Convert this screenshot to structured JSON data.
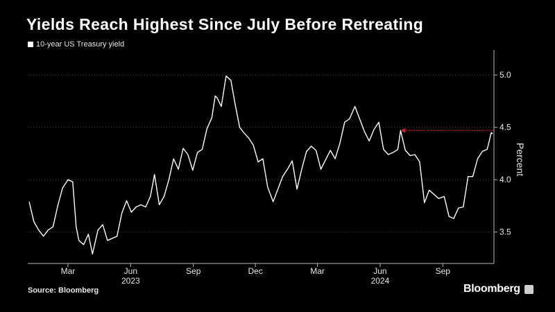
{
  "title": "Yields Reach Highest Since July Before Retreating",
  "legend_label": "10-year US Treasury yield",
  "source": "Source: Bloomberg",
  "brand": "Bloomberg",
  "colors": {
    "background": "#000000",
    "line": "#ffffff",
    "arrow": "#d2202f"
  },
  "chart_data": {
    "type": "line",
    "title": "Yields Reach Highest Since July Before Retreating",
    "ylabel": "Percent",
    "ylim": [
      3.2,
      5.2
    ],
    "yticks": [
      3.5,
      4.0,
      4.5,
      5.0
    ],
    "y_tick_labels": [
      "3.5",
      "4.0",
      "4.5",
      "5.0"
    ],
    "xlim": [
      "2023-01-01",
      "2024-11-15"
    ],
    "x_ticks": [
      {
        "date": "2023-03-01",
        "label": "Mar"
      },
      {
        "date": "2023-06-01",
        "label": "Jun"
      },
      {
        "date": "2023-09-01",
        "label": "Sep"
      },
      {
        "date": "2023-12-01",
        "label": "Dec"
      },
      {
        "date": "2024-03-01",
        "label": "Mar"
      },
      {
        "date": "2024-06-01",
        "label": "Jun"
      },
      {
        "date": "2024-09-01",
        "label": "Sep"
      }
    ],
    "year_labels": [
      {
        "date": "2023-06-01",
        "label": "2023"
      },
      {
        "date": "2024-06-01",
        "label": "2024"
      }
    ],
    "legend_position": "top-left",
    "series": [
      {
        "name": "10-year US Treasury yield",
        "points": [
          [
            "2023-01-03",
            3.79
          ],
          [
            "2023-01-10",
            3.6
          ],
          [
            "2023-01-17",
            3.52
          ],
          [
            "2023-01-24",
            3.46
          ],
          [
            "2023-01-31",
            3.52
          ],
          [
            "2023-02-07",
            3.55
          ],
          [
            "2023-02-14",
            3.75
          ],
          [
            "2023-02-21",
            3.92
          ],
          [
            "2023-03-01",
            4.0
          ],
          [
            "2023-03-08",
            3.98
          ],
          [
            "2023-03-13",
            3.55
          ],
          [
            "2023-03-17",
            3.42
          ],
          [
            "2023-03-24",
            3.38
          ],
          [
            "2023-03-31",
            3.48
          ],
          [
            "2023-04-06",
            3.29
          ],
          [
            "2023-04-14",
            3.52
          ],
          [
            "2023-04-21",
            3.57
          ],
          [
            "2023-04-28",
            3.42
          ],
          [
            "2023-05-05",
            3.44
          ],
          [
            "2023-05-12",
            3.46
          ],
          [
            "2023-05-19",
            3.68
          ],
          [
            "2023-05-26",
            3.8
          ],
          [
            "2023-06-02",
            3.69
          ],
          [
            "2023-06-09",
            3.74
          ],
          [
            "2023-06-16",
            3.76
          ],
          [
            "2023-06-23",
            3.74
          ],
          [
            "2023-06-30",
            3.84
          ],
          [
            "2023-07-06",
            4.05
          ],
          [
            "2023-07-13",
            3.76
          ],
          [
            "2023-07-20",
            3.84
          ],
          [
            "2023-07-27",
            4.0
          ],
          [
            "2023-08-03",
            4.2
          ],
          [
            "2023-08-10",
            4.1
          ],
          [
            "2023-08-17",
            4.3
          ],
          [
            "2023-08-24",
            4.24
          ],
          [
            "2023-08-31",
            4.09
          ],
          [
            "2023-09-07",
            4.26
          ],
          [
            "2023-09-14",
            4.29
          ],
          [
            "2023-09-21",
            4.49
          ],
          [
            "2023-09-28",
            4.59
          ],
          [
            "2023-10-03",
            4.8
          ],
          [
            "2023-10-06",
            4.78
          ],
          [
            "2023-10-12",
            4.7
          ],
          [
            "2023-10-19",
            4.99
          ],
          [
            "2023-10-26",
            4.95
          ],
          [
            "2023-11-01",
            4.73
          ],
          [
            "2023-11-08",
            4.5
          ],
          [
            "2023-11-14",
            4.45
          ],
          [
            "2023-11-21",
            4.4
          ],
          [
            "2023-11-28",
            4.33
          ],
          [
            "2023-12-05",
            4.17
          ],
          [
            "2023-12-12",
            4.2
          ],
          [
            "2023-12-19",
            3.93
          ],
          [
            "2023-12-27",
            3.79
          ],
          [
            "2024-01-03",
            3.91
          ],
          [
            "2024-01-10",
            4.03
          ],
          [
            "2024-01-17",
            4.1
          ],
          [
            "2024-01-24",
            4.18
          ],
          [
            "2024-01-31",
            3.91
          ],
          [
            "2024-02-07",
            4.1
          ],
          [
            "2024-02-14",
            4.27
          ],
          [
            "2024-02-21",
            4.32
          ],
          [
            "2024-02-28",
            4.28
          ],
          [
            "2024-03-06",
            4.1
          ],
          [
            "2024-03-13",
            4.19
          ],
          [
            "2024-03-20",
            4.28
          ],
          [
            "2024-03-27",
            4.2
          ],
          [
            "2024-04-03",
            4.35
          ],
          [
            "2024-04-10",
            4.55
          ],
          [
            "2024-04-17",
            4.58
          ],
          [
            "2024-04-25",
            4.7
          ],
          [
            "2024-05-02",
            4.58
          ],
          [
            "2024-05-09",
            4.46
          ],
          [
            "2024-05-16",
            4.37
          ],
          [
            "2024-05-23",
            4.48
          ],
          [
            "2024-05-30",
            4.55
          ],
          [
            "2024-06-06",
            4.29
          ],
          [
            "2024-06-13",
            4.24
          ],
          [
            "2024-06-20",
            4.26
          ],
          [
            "2024-06-27",
            4.29
          ],
          [
            "2024-07-01",
            4.47
          ],
          [
            "2024-07-08",
            4.28
          ],
          [
            "2024-07-15",
            4.23
          ],
          [
            "2024-07-22",
            4.24
          ],
          [
            "2024-07-29",
            4.17
          ],
          [
            "2024-08-05",
            3.78
          ],
          [
            "2024-08-12",
            3.9
          ],
          [
            "2024-08-19",
            3.86
          ],
          [
            "2024-08-26",
            3.82
          ],
          [
            "2024-09-03",
            3.84
          ],
          [
            "2024-09-10",
            3.65
          ],
          [
            "2024-09-17",
            3.63
          ],
          [
            "2024-09-24",
            3.73
          ],
          [
            "2024-10-01",
            3.74
          ],
          [
            "2024-10-08",
            4.03
          ],
          [
            "2024-10-15",
            4.03
          ],
          [
            "2024-10-22",
            4.2
          ],
          [
            "2024-10-29",
            4.27
          ],
          [
            "2024-11-05",
            4.29
          ],
          [
            "2024-11-07",
            4.34
          ],
          [
            "2024-11-11",
            4.45
          ],
          [
            "2024-11-13",
            4.44
          ]
        ]
      }
    ],
    "annotations": [
      {
        "type": "arrow",
        "from": [
          "2024-11-13",
          4.47
        ],
        "to": [
          "2024-07-01",
          4.47
        ]
      }
    ]
  }
}
